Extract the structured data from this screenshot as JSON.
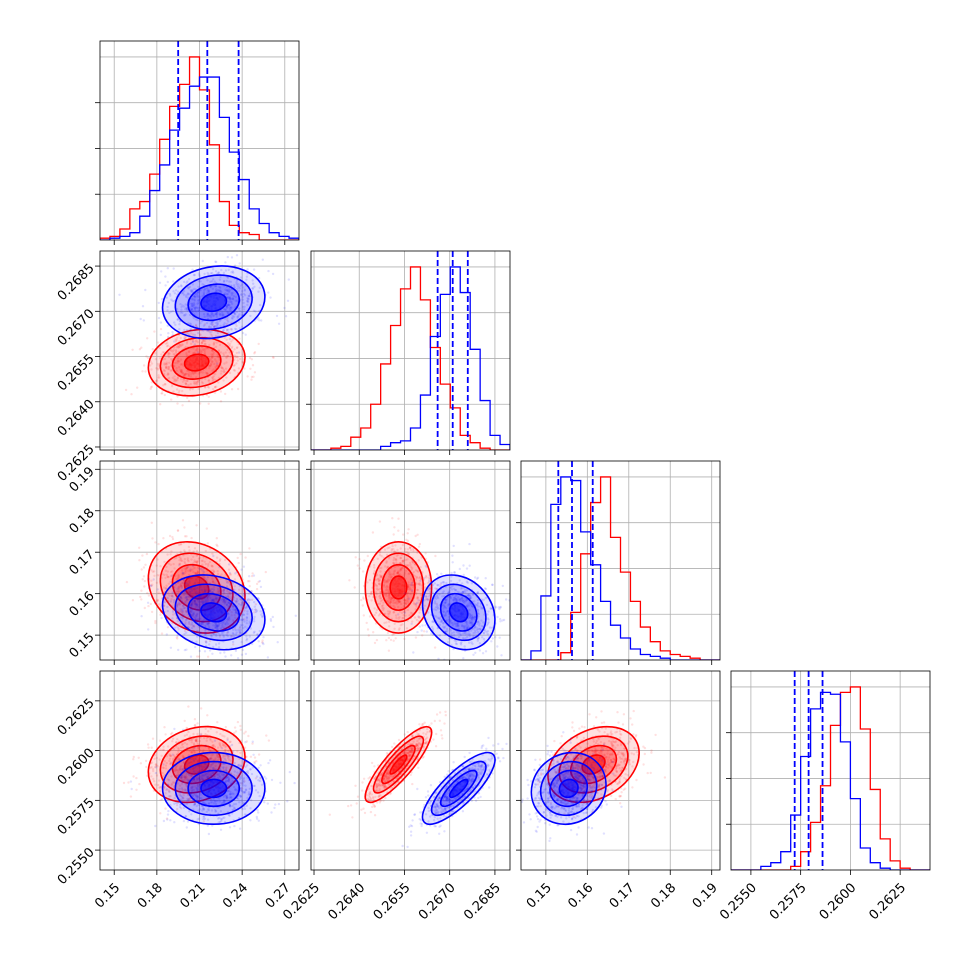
{
  "chart_data": {
    "type": "corner",
    "grid": true,
    "legend": "none",
    "colors": {
      "red": "#ff0000",
      "blue": "#0000ff"
    },
    "parameters": [
      {
        "range": [
          0.14,
          0.28
        ],
        "xticks": [
          "0.15",
          "0.18",
          "0.21",
          "0.24",
          "0.27"
        ],
        "yticks": []
      },
      {
        "range": [
          0.2624,
          0.269
        ],
        "xticks": [
          "0.2625",
          "0.2640",
          "0.2655",
          "0.2670",
          "0.2685"
        ],
        "yticks": [
          "0.2625",
          "0.2640",
          "0.2655",
          "0.2670",
          "0.2685"
        ]
      },
      {
        "range": [
          0.144,
          0.192
        ],
        "xticks": [
          "0.15",
          "0.16",
          "0.17",
          "0.18",
          "0.19"
        ],
        "yticks": [
          "0.15",
          "0.16",
          "0.17",
          "0.18",
          "0.19"
        ]
      },
      {
        "range": [
          0.254,
          0.264
        ],
        "xticks": [
          "0.2550",
          "0.2575",
          "0.2600",
          "0.2625"
        ],
        "yticks": [
          "0.2550",
          "0.2575",
          "0.2600",
          "0.2625"
        ]
      }
    ],
    "series": [
      {
        "color": "red",
        "means": [
          0.208,
          0.2653,
          0.1615,
          0.2593
        ],
        "sds": [
          0.017,
          0.00055,
          0.0055,
          0.00095
        ],
        "correlations": [
          [
            0,
            1,
            0.15
          ],
          [
            0,
            2,
            -0.2
          ],
          [
            0,
            3,
            0.2
          ],
          [
            1,
            2,
            0.0
          ],
          [
            1,
            3,
            0.85
          ],
          [
            2,
            3,
            0.3
          ]
        ],
        "histograms": [
          [
            0.01,
            0.02,
            0.06,
            0.17,
            0.21,
            0.36,
            0.55,
            0.73,
            0.85,
            1.0,
            0.82,
            0.52,
            0.21,
            0.08,
            0.04,
            0.03,
            0.0,
            0.0,
            0.0,
            0.0
          ],
          [
            0.0,
            0.0,
            0.01,
            0.02,
            0.07,
            0.12,
            0.25,
            0.47,
            0.68,
            0.88,
            1.0,
            0.82,
            0.56,
            0.36,
            0.23,
            0.08,
            0.04,
            0.01,
            0.0,
            0.0
          ],
          [
            0.0,
            0.0,
            0.0,
            0.0,
            0.04,
            0.26,
            0.58,
            0.86,
            1.0,
            0.67,
            0.48,
            0.32,
            0.18,
            0.1,
            0.05,
            0.03,
            0.02,
            0.01,
            0.0,
            0.0
          ],
          [
            0.0,
            0.0,
            0.0,
            0.0,
            0.0,
            0.0,
            0.02,
            0.1,
            0.26,
            0.46,
            0.79,
            0.97,
            1.0,
            0.77,
            0.44,
            0.17,
            0.05,
            0.01,
            0.0,
            0.0
          ]
        ]
      },
      {
        "color": "blue",
        "means": [
          0.22,
          0.2673,
          0.1555,
          0.2581
        ],
        "sds": [
          0.018,
          0.0006,
          0.0045,
          0.0009
        ],
        "correlations": [
          [
            0,
            1,
            0.15
          ],
          [
            0,
            2,
            -0.2
          ],
          [
            0,
            3,
            0.0
          ],
          [
            1,
            2,
            -0.2
          ],
          [
            1,
            3,
            0.8
          ],
          [
            2,
            3,
            0.1
          ]
        ],
        "histograms": [
          [
            0.0,
            0.01,
            0.02,
            0.04,
            0.13,
            0.27,
            0.41,
            0.6,
            0.72,
            0.84,
            0.89,
            0.89,
            0.67,
            0.48,
            0.33,
            0.17,
            0.09,
            0.04,
            0.02,
            0.01
          ],
          [
            0.0,
            0.0,
            0.0,
            0.0,
            0.0,
            0.0,
            0.0,
            0.02,
            0.04,
            0.05,
            0.12,
            0.3,
            0.62,
            0.85,
            1.0,
            0.86,
            0.55,
            0.27,
            0.08,
            0.03
          ],
          [
            0.0,
            0.05,
            0.35,
            0.85,
            1.0,
            0.98,
            0.7,
            0.52,
            0.32,
            0.19,
            0.12,
            0.06,
            0.03,
            0.02,
            0.01,
            0.0,
            0.0,
            0.0,
            0.0,
            0.0
          ],
          [
            0.0,
            0.0,
            0.0,
            0.02,
            0.04,
            0.1,
            0.3,
            0.62,
            0.88,
            0.97,
            0.96,
            0.7,
            0.39,
            0.12,
            0.04,
            0.01,
            0.0,
            0.0,
            0.0,
            0.0
          ]
        ]
      }
    ],
    "quantile_lines": {
      "color": "blue",
      "style": "dashed",
      "values": [
        [
          0.195,
          0.2155,
          0.2375
        ],
        [
          0.2666,
          0.2671,
          0.2676
        ],
        [
          0.153,
          0.1563,
          0.1613
        ],
        [
          0.2572,
          0.2579,
          0.2586
        ]
      ]
    }
  }
}
